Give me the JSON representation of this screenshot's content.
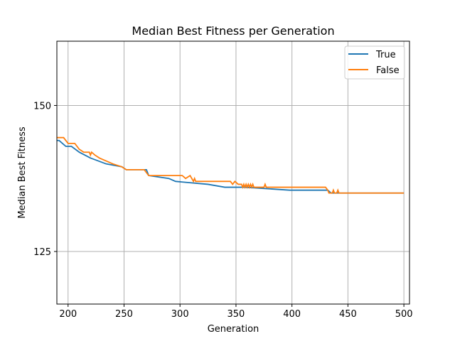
{
  "chart_data": {
    "type": "line",
    "title": "Median Best Fitness per Generation",
    "xlabel": "Generation",
    "ylabel": "Median Best Fitness",
    "xlim": [
      190,
      505
    ],
    "ylim": [
      116,
      161
    ],
    "xticks": [
      200,
      250,
      300,
      350,
      400,
      450,
      500
    ],
    "yticks": [
      125,
      150
    ],
    "grid": true,
    "legend": "top-right",
    "series": [
      {
        "name": "True",
        "color": "#1f77b4",
        "x": [
          190,
          192,
          198,
          203,
          210,
          220,
          234,
          248,
          252,
          270,
          272,
          290,
          296,
          325,
          340,
          358,
          398,
          412,
          432,
          435,
          500
        ],
        "y": [
          144.0,
          144.0,
          143.0,
          143.0,
          142.0,
          141.0,
          140.0,
          139.5,
          139.0,
          139.0,
          138.0,
          137.5,
          137.0,
          136.5,
          136.0,
          136.0,
          135.5,
          135.5,
          135.5,
          135.0,
          135.0
        ]
      },
      {
        "name": "False",
        "color": "#ff7f0e",
        "x": [
          190,
          192,
          196,
          200,
          206,
          210,
          214,
          219,
          220,
          221,
          224,
          228,
          234,
          240,
          248,
          252,
          268,
          270,
          272,
          302,
          305,
          309,
          312,
          313,
          314,
          345,
          347,
          349,
          352,
          355,
          356,
          357,
          358,
          359,
          360,
          361,
          362,
          363,
          364,
          365,
          366,
          368,
          375,
          376,
          377,
          414,
          426,
          430,
          432,
          433,
          436,
          437,
          438,
          440,
          441,
          442,
          443,
          500
        ],
        "y": [
          144.5,
          144.5,
          144.5,
          143.5,
          143.5,
          142.5,
          142.0,
          142.0,
          141.5,
          142.0,
          141.5,
          141.0,
          140.5,
          140.0,
          139.5,
          139.0,
          139.0,
          138.5,
          138.0,
          138.0,
          137.5,
          138.0,
          137.0,
          137.5,
          137.0,
          137.0,
          136.5,
          137.0,
          136.5,
          136.5,
          136.0,
          136.5,
          136.0,
          136.5,
          136.0,
          136.5,
          136.0,
          136.5,
          136.0,
          136.5,
          136.0,
          136.0,
          136.0,
          136.5,
          136.0,
          136.0,
          136.0,
          136.0,
          135.5,
          135.0,
          135.0,
          135.5,
          135.0,
          135.0,
          135.5,
          135.0,
          135.0,
          135.0
        ]
      }
    ]
  }
}
